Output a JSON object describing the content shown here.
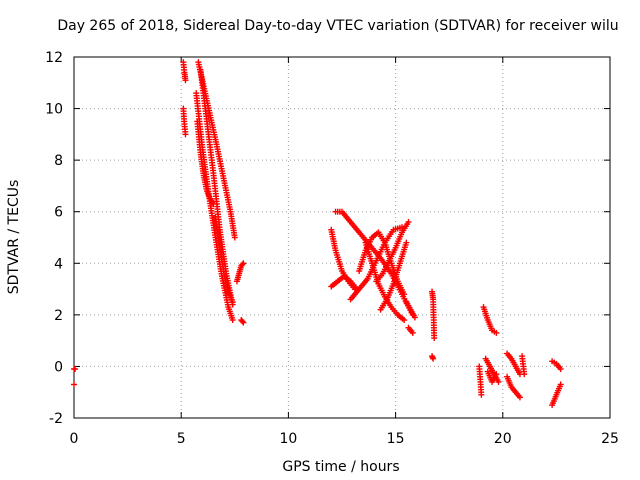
{
  "chart_data": {
    "type": "scatter",
    "title": "Day 265 of 2018, Sidereal Day-to-day VTEC variation (SDTVAR) for receiver wilu",
    "xlabel": "GPS time / hours",
    "ylabel": "SDTVAR / TECUs",
    "xlim": [
      0,
      25
    ],
    "ylim": [
      -2,
      12
    ],
    "xticks": [
      0,
      5,
      10,
      15,
      20,
      25
    ],
    "yticks": [
      -2,
      0,
      2,
      4,
      6,
      8,
      10,
      12
    ],
    "grid": true,
    "marker": "+",
    "marker_color": "#ff0000",
    "segments": [
      {
        "x": [
          0.0,
          0.05
        ],
        "y": [
          -0.1,
          -0.1
        ]
      },
      {
        "x": [
          0.0
        ],
        "y": [
          -0.7
        ]
      },
      {
        "x": [
          5.1,
          5.15,
          5.2
        ],
        "y": [
          11.8,
          11.4,
          11.1
        ]
      },
      {
        "x": [
          5.1,
          5.15,
          5.2
        ],
        "y": [
          10.0,
          9.4,
          9.0
        ]
      },
      {
        "x": [
          5.8,
          6.2,
          6.6,
          7.0,
          7.3,
          7.5
        ],
        "y": [
          11.8,
          10.3,
          8.8,
          7.2,
          6.0,
          5.0
        ]
      },
      {
        "x": [
          5.9,
          6.2,
          6.5,
          6.8,
          7.1,
          7.4
        ],
        "y": [
          11.5,
          9.5,
          7.5,
          5.3,
          3.6,
          2.4
        ]
      },
      {
        "x": [
          5.7,
          6.0,
          6.3,
          6.6,
          6.9,
          7.2,
          7.4
        ],
        "y": [
          10.6,
          8.4,
          6.6,
          5.0,
          3.5,
          2.3,
          1.8
        ]
      },
      {
        "x": [
          5.75,
          5.9,
          6.05,
          6.2,
          6.35,
          6.5
        ],
        "y": [
          9.5,
          8.3,
          7.4,
          6.8,
          6.5,
          6.3
        ]
      },
      {
        "x": [
          6.6,
          6.8,
          7.0,
          7.2,
          7.4
        ],
        "y": [
          5.8,
          4.6,
          3.6,
          2.9,
          2.5
        ]
      },
      {
        "x": [
          7.6,
          7.7,
          7.8,
          7.9
        ],
        "y": [
          3.3,
          3.6,
          3.9,
          4.0
        ]
      },
      {
        "x": [
          7.8,
          7.9
        ],
        "y": [
          1.8,
          1.7
        ]
      },
      {
        "x": [
          12.0,
          12.2,
          12.5,
          12.8,
          13.1
        ],
        "y": [
          5.3,
          4.5,
          3.7,
          3.3,
          3.0
        ]
      },
      {
        "x": [
          12.0,
          12.3,
          12.6,
          12.9,
          13.2
        ],
        "y": [
          3.1,
          3.3,
          3.5,
          3.3,
          3.0
        ]
      },
      {
        "x": [
          12.2,
          12.5,
          12.9,
          13.3,
          13.8,
          14.3,
          14.8,
          15.3,
          15.8
        ],
        "y": [
          6.0,
          6.0,
          5.6,
          5.2,
          4.7,
          4.2,
          3.6,
          2.8,
          2.0
        ]
      },
      {
        "x": [
          12.9,
          13.3,
          13.7,
          14.1,
          14.5,
          14.9,
          15.3
        ],
        "y": [
          2.6,
          3.0,
          3.4,
          4.1,
          4.8,
          5.3,
          5.4
        ]
      },
      {
        "x": [
          13.3,
          13.6,
          13.9,
          14.2,
          14.5,
          14.8,
          15.1,
          15.4
        ],
        "y": [
          3.7,
          4.5,
          5.0,
          5.2,
          4.8,
          4.0,
          3.3,
          2.8
        ]
      },
      {
        "x": [
          13.6,
          13.9,
          14.2,
          14.5,
          14.8,
          15.1,
          15.4
        ],
        "y": [
          4.8,
          4.0,
          3.2,
          2.7,
          2.3,
          2.0,
          1.8
        ]
      },
      {
        "x": [
          14.1,
          14.4,
          14.7,
          15.0,
          15.3,
          15.6
        ],
        "y": [
          3.3,
          3.6,
          4.1,
          4.6,
          5.2,
          5.6
        ]
      },
      {
        "x": [
          14.3,
          14.6,
          14.9,
          15.2,
          15.5
        ],
        "y": [
          2.2,
          2.6,
          3.2,
          4.0,
          4.8
        ]
      },
      {
        "x": [
          15.5,
          15.7,
          15.9
        ],
        "y": [
          2.5,
          2.2,
          1.9
        ]
      },
      {
        "x": [
          15.6,
          15.8
        ],
        "y": [
          1.5,
          1.3
        ]
      },
      {
        "x": [
          16.7,
          16.75,
          16.8
        ],
        "y": [
          2.9,
          2.6,
          1.1
        ]
      },
      {
        "x": [
          16.7,
          16.75
        ],
        "y": [
          0.4,
          0.3
        ]
      },
      {
        "x": [
          18.9,
          18.95,
          19.0
        ],
        "y": [
          0.0,
          -0.5,
          -1.1
        ]
      },
      {
        "x": [
          19.1,
          19.3,
          19.5,
          19.7
        ],
        "y": [
          2.3,
          1.8,
          1.4,
          1.3
        ]
      },
      {
        "x": [
          19.2,
          19.4,
          19.6,
          19.8
        ],
        "y": [
          0.3,
          0.0,
          -0.3,
          -0.6
        ]
      },
      {
        "x": [
          19.3,
          19.5,
          19.7
        ],
        "y": [
          -0.2,
          -0.6,
          -0.3
        ]
      },
      {
        "x": [
          20.2,
          20.4,
          20.6,
          20.8
        ],
        "y": [
          0.5,
          0.3,
          0.0,
          -0.3
        ]
      },
      {
        "x": [
          20.2,
          20.4,
          20.6,
          20.8
        ],
        "y": [
          -0.4,
          -0.8,
          -1.0,
          -1.2
        ]
      },
      {
        "x": [
          20.9,
          21.0
        ],
        "y": [
          0.4,
          -0.3
        ]
      },
      {
        "x": [
          22.3,
          22.5,
          22.7
        ],
        "y": [
          0.2,
          0.1,
          -0.1
        ]
      },
      {
        "x": [
          22.3,
          22.5,
          22.7
        ],
        "y": [
          -1.5,
          -1.1,
          -0.7
        ]
      }
    ]
  }
}
